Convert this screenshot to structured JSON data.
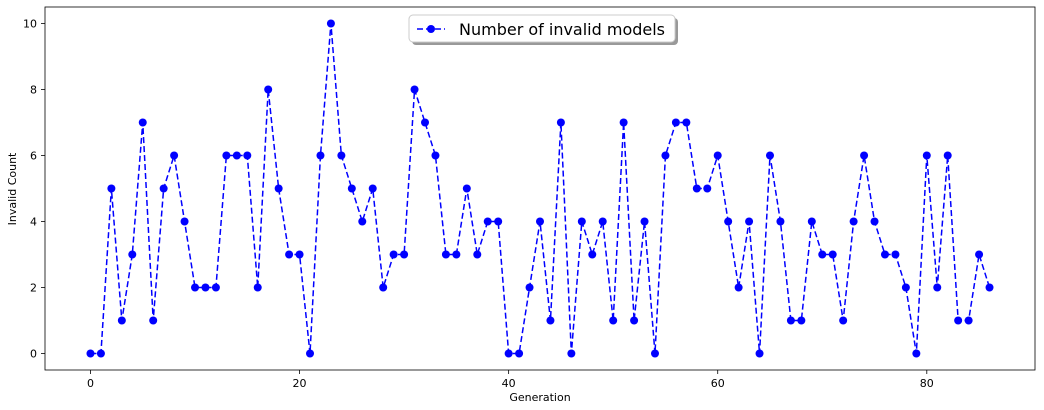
{
  "chart_data": {
    "type": "line",
    "xlabel": "Generation",
    "ylabel": "Invalid Count",
    "xlim": [
      -4.35,
      90.35
    ],
    "ylim": [
      -0.5,
      10.5
    ],
    "xticks": [
      0,
      20,
      40,
      60,
      80
    ],
    "yticks": [
      0,
      2,
      4,
      6,
      8,
      10
    ],
    "grid": false,
    "legend_position": "top-center",
    "series": [
      {
        "name": "Number of invalid models",
        "color": "#0000ff",
        "line_style": "dashed",
        "marker": "circle",
        "x": [
          0,
          1,
          2,
          3,
          4,
          5,
          6,
          7,
          8,
          9,
          10,
          11,
          12,
          13,
          14,
          15,
          16,
          17,
          18,
          19,
          20,
          21,
          22,
          23,
          24,
          25,
          26,
          27,
          28,
          29,
          30,
          31,
          32,
          33,
          34,
          35,
          36,
          37,
          38,
          39,
          40,
          41,
          42,
          43,
          44,
          45,
          46,
          47,
          48,
          49,
          50,
          51,
          52,
          53,
          54,
          55,
          56,
          57,
          58,
          59,
          60,
          61,
          62,
          63,
          64,
          65,
          66,
          67,
          68,
          69,
          70,
          71,
          72,
          73,
          74,
          75,
          76,
          77,
          78,
          79,
          80,
          81,
          82,
          83,
          84,
          85,
          86
        ],
        "values": [
          0,
          0,
          5,
          1,
          3,
          7,
          1,
          5,
          6,
          4,
          2,
          2,
          2,
          6,
          6,
          6,
          2,
          8,
          5,
          3,
          3,
          0,
          6,
          10,
          6,
          5,
          4,
          5,
          2,
          3,
          3,
          8,
          7,
          6,
          3,
          3,
          5,
          3,
          4,
          4,
          0,
          0,
          2,
          4,
          1,
          7,
          0,
          4,
          3,
          4,
          1,
          7,
          1,
          4,
          0,
          6,
          7,
          7,
          5,
          5,
          6,
          4,
          2,
          4,
          0,
          6,
          4,
          1,
          1,
          4,
          3,
          3,
          1,
          4,
          6,
          4,
          3,
          3,
          2,
          0,
          6,
          2,
          6,
          1,
          1,
          3,
          2
        ]
      }
    ]
  }
}
